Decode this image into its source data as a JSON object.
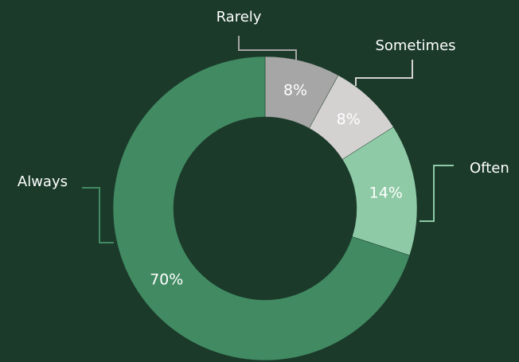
{
  "chart_data": {
    "type": "pie",
    "donut": true,
    "categories": [
      "Rarely",
      "Sometimes",
      "Often",
      "Always"
    ],
    "values": [
      8,
      8,
      14,
      70
    ],
    "value_labels": [
      "8%",
      "8%",
      "14%",
      "70%"
    ],
    "colors": [
      "#a6a6a6",
      "#d4d1d1",
      "#8fcaa6",
      "#418a62"
    ]
  }
}
